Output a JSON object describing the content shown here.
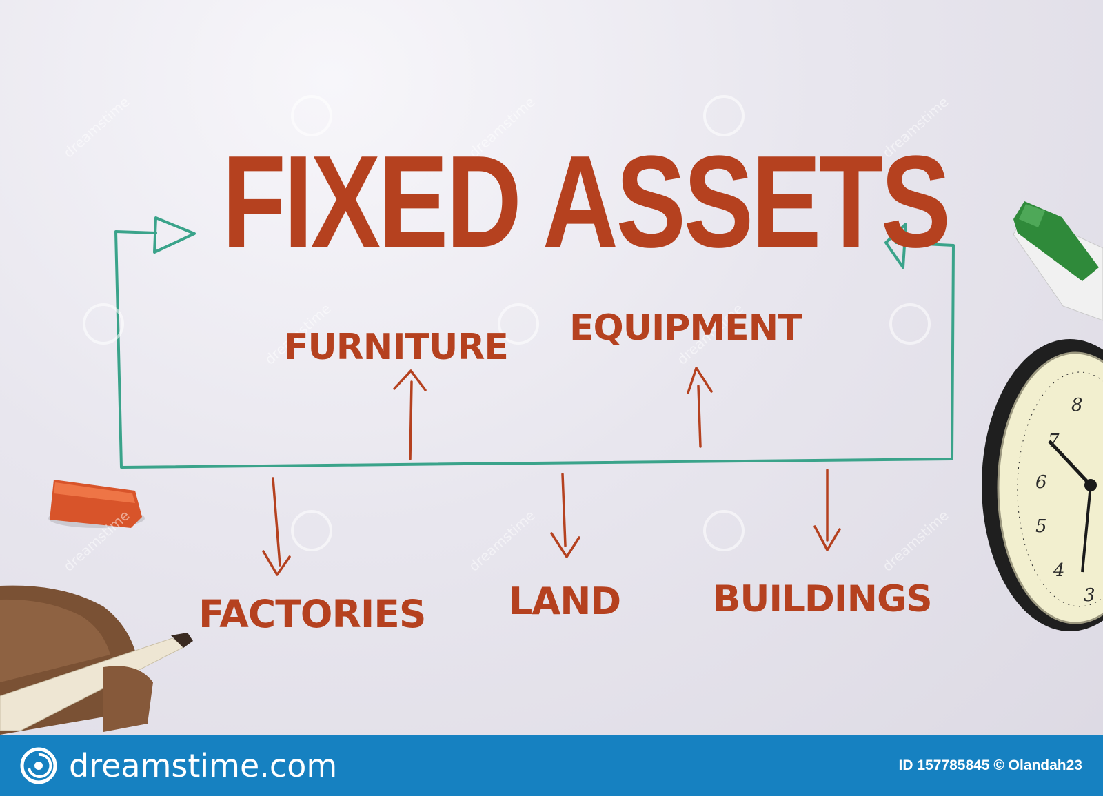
{
  "diagram": {
    "title": "FIXED ASSETS",
    "above_line": [
      "FURNITURE",
      "EQUIPMENT"
    ],
    "below_line": [
      "FACTORIES",
      "LAND",
      "BUILDINGS"
    ]
  },
  "colors": {
    "text": "#b5411f",
    "marker_line": "#3aa38a",
    "footer": "#1681c1"
  },
  "footer": {
    "brand": "dreamstime.com",
    "image_id": "ID 157785845 © Olandah23"
  },
  "watermark": "dreamstime",
  "clock": {
    "numerals": [
      "8",
      "7",
      "6",
      "5",
      "4",
      "3"
    ]
  }
}
